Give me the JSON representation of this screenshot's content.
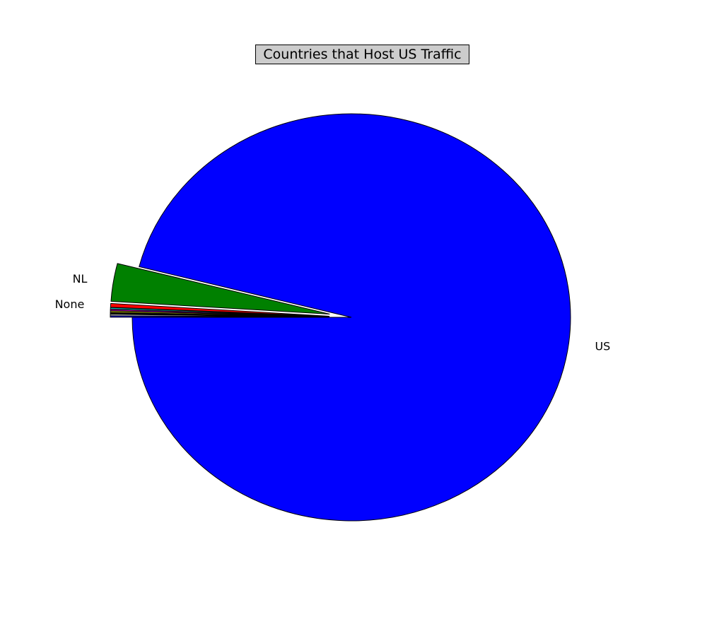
{
  "chart_data": {
    "type": "pie",
    "title": "Countries that Host US Traffic",
    "slices": [
      {
        "label": "US",
        "value": 96.0,
        "color": "#0000ff",
        "explode": false
      },
      {
        "label": "NL",
        "value": 3.0,
        "color": "#008000",
        "explode": true
      },
      {
        "label": "None",
        "value": 0.3,
        "color": "#ff0000",
        "explode": true
      },
      {
        "label": "",
        "value": 0.12,
        "color": "#00bfbf",
        "explode": true
      },
      {
        "label": "",
        "value": 0.12,
        "color": "#bf00bf",
        "explode": true
      },
      {
        "label": "",
        "value": 0.12,
        "color": "#bfbf00",
        "explode": true
      },
      {
        "label": "",
        "value": 0.12,
        "color": "#000000",
        "explode": true
      },
      {
        "label": "",
        "value": 0.11,
        "color": "#ffffff",
        "explode": true
      },
      {
        "label": "",
        "value": 0.11,
        "color": "#0000ff",
        "explode": true
      }
    ]
  }
}
